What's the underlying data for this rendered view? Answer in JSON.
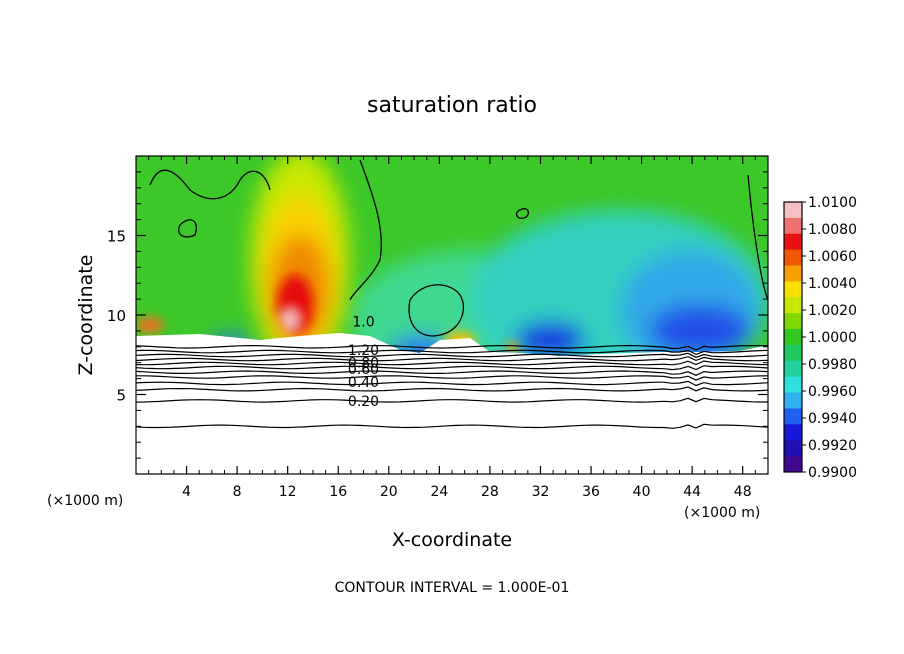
{
  "chart_data": {
    "type": "heatmap",
    "title": "saturation ratio",
    "xlabel": "X-coordinate",
    "ylabel": "Z-coordinate",
    "x_unit_left": "(×1000 m)",
    "x_unit_right": "(×1000 m)",
    "xlim": [
      0,
      50
    ],
    "ylim": [
      0,
      20
    ],
    "x_ticks": [
      "4",
      "8",
      "12",
      "16",
      "20",
      "24",
      "28",
      "32",
      "36",
      "40",
      "44",
      "48"
    ],
    "y_ticks": [
      "5",
      "10",
      "15"
    ],
    "x_tick_values": [
      4,
      8,
      12,
      16,
      20,
      24,
      28,
      32,
      36,
      40,
      44,
      48
    ],
    "y_tick_values": [
      5,
      10,
      15
    ],
    "footer": "CONTOUR INTERVAL = 1.000E-01",
    "contour_labels": [
      {
        "text": "1.20",
        "x": 18,
        "z": 7.8
      },
      {
        "text": "0.80",
        "x": 18,
        "z": 7.0
      },
      {
        "text": "0.60",
        "x": 18,
        "z": 6.6
      },
      {
        "text": "0.40",
        "x": 18,
        "z": 5.8
      },
      {
        "text": "0.20",
        "x": 18,
        "z": 4.6
      },
      {
        "text": "1.0",
        "x": 18,
        "z": 9.6
      }
    ],
    "contour_levels_z": [
      3.0,
      4.6,
      5.3,
      5.7,
      6.1,
      6.4,
      6.7,
      6.95,
      7.2,
      7.45,
      7.7,
      8.0
    ],
    "colorbar": {
      "labels": [
        "1.0100",
        "1.0080",
        "1.0060",
        "1.0040",
        "1.0020",
        "1.0000",
        "0.9980",
        "0.9960",
        "0.9940",
        "0.9920",
        "0.9900"
      ],
      "colors": [
        "#f4c0c0",
        "#f07070",
        "#e81010",
        "#f05800",
        "#f8a000",
        "#f8e000",
        "#c8e800",
        "#80d800",
        "#30c820",
        "#20c860",
        "#20d0a0",
        "#30e0e0",
        "#30b0f0",
        "#2060f0",
        "#1818d8",
        "#2010b0",
        "#400890"
      ]
    }
  }
}
